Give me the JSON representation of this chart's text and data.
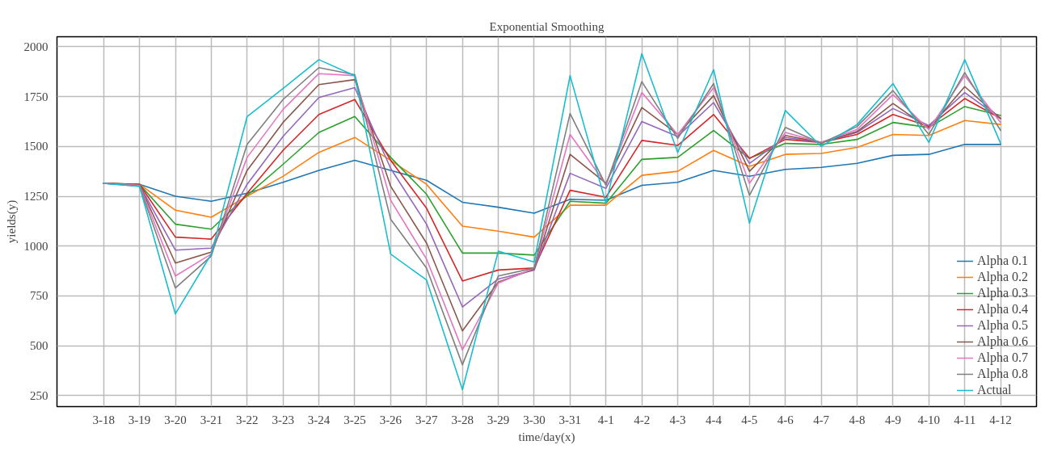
{
  "chart_data": {
    "type": "line",
    "title": "Exponential Smoothing",
    "xlabel": "time/day(x)",
    "ylabel": "yields(y)",
    "categories": [
      "3-18",
      "3-19",
      "3-20",
      "3-21",
      "3-22",
      "3-23",
      "3-24",
      "3-25",
      "3-26",
      "3-27",
      "3-28",
      "3-29",
      "3-30",
      "3-31",
      "4-1",
      "4-2",
      "4-3",
      "4-4",
      "4-5",
      "4-6",
      "4-7",
      "4-8",
      "4-9",
      "4-10",
      "4-11",
      "4-12"
    ],
    "ylim": [
      195,
      2050
    ],
    "yticks": [
      250,
      500,
      750,
      1000,
      1250,
      1500,
      1750,
      2000
    ],
    "grid": true,
    "legend": "bottom right",
    "marker": "none",
    "line_style": "solid",
    "series": [
      {
        "name": "Alpha 0.1",
        "color": "#1f77b4",
        "values": [
          1315,
          1310,
          1250,
          1225,
          1265,
          1320,
          1380,
          1430,
          1380,
          1330,
          1220,
          1195,
          1165,
          1235,
          1230,
          1305,
          1320,
          1380,
          1350,
          1385,
          1395,
          1415,
          1455,
          1460,
          1510,
          1510
        ]
      },
      {
        "name": "Alpha 0.2",
        "color": "#ff7f0e",
        "values": [
          1315,
          1310,
          1180,
          1145,
          1250,
          1350,
          1470,
          1545,
          1430,
          1310,
          1100,
          1075,
          1045,
          1205,
          1205,
          1355,
          1375,
          1480,
          1400,
          1460,
          1465,
          1495,
          1560,
          1555,
          1630,
          1610
        ]
      },
      {
        "name": "Alpha 0.3",
        "color": "#2ca02c",
        "values": [
          1315,
          1310,
          1110,
          1085,
          1255,
          1410,
          1570,
          1650,
          1445,
          1260,
          965,
          965,
          955,
          1225,
          1215,
          1435,
          1445,
          1580,
          1440,
          1515,
          1510,
          1535,
          1620,
          1595,
          1700,
          1655
        ]
      },
      {
        "name": "Alpha 0.4",
        "color": "#d62728",
        "values": [
          1315,
          1310,
          1045,
          1035,
          1265,
          1480,
          1660,
          1735,
          1430,
          1190,
          825,
          880,
          890,
          1280,
          1245,
          1530,
          1505,
          1660,
          1440,
          1535,
          1520,
          1560,
          1660,
          1600,
          1740,
          1640
        ]
      },
      {
        "name": "Alpha 0.5",
        "color": "#9467bd",
        "values": [
          1315,
          1305,
          980,
          990,
          1310,
          1550,
          1745,
          1795,
          1390,
          1110,
          695,
          835,
          880,
          1365,
          1290,
          1625,
          1550,
          1720,
          1415,
          1545,
          1520,
          1570,
          1690,
          1605,
          1770,
          1640
        ]
      },
      {
        "name": "Alpha 0.6",
        "color": "#8c564b",
        "values": [
          1315,
          1305,
          915,
          970,
          1380,
          1620,
          1810,
          1835,
          1300,
          1015,
          575,
          820,
          885,
          1460,
          1315,
          1695,
          1560,
          1755,
          1375,
          1555,
          1520,
          1575,
          1715,
          1590,
          1800,
          1640
        ]
      },
      {
        "name": "Alpha 0.7",
        "color": "#e377c2",
        "values": [
          1315,
          1305,
          850,
          960,
          1445,
          1685,
          1865,
          1855,
          1230,
          935,
          480,
          815,
          890,
          1560,
          1310,
          1770,
          1560,
          1795,
          1315,
          1570,
          1520,
          1585,
          1760,
          1585,
          1855,
          1620
        ]
      },
      {
        "name": "Alpha 0.8",
        "color": "#7f7f7f",
        "values": [
          1315,
          1300,
          790,
          950,
          1510,
          1735,
          1895,
          1860,
          1135,
          890,
          405,
          850,
          890,
          1665,
          1305,
          1825,
          1540,
          1815,
          1255,
          1595,
          1515,
          1600,
          1780,
          1560,
          1870,
          1580
        ]
      },
      {
        "name": "Actual",
        "color": "#17becf",
        "values": [
          1315,
          1300,
          660,
          960,
          1650,
          1790,
          1935,
          1855,
          960,
          830,
          280,
          975,
          920,
          1855,
          1215,
          1965,
          1470,
          1885,
          1115,
          1680,
          1500,
          1610,
          1815,
          1520,
          1935,
          1515
        ]
      }
    ]
  }
}
